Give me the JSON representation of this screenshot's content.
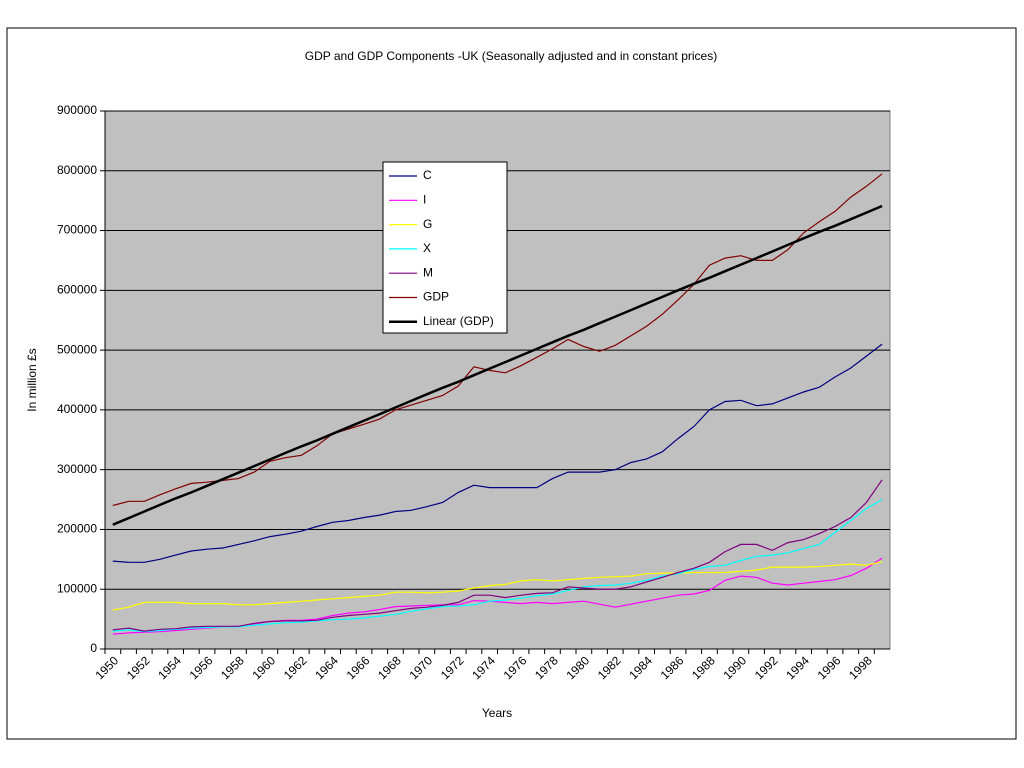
{
  "chart_data": {
    "type": "line",
    "title": "GDP and GDP Components -UK (Seasonally adjusted and in constant prices)",
    "x_label": "Years",
    "y_label": "In million £s",
    "categories": [
      "1950",
      null,
      "1952",
      null,
      "1954",
      null,
      "1956",
      null,
      "1958",
      null,
      "1960",
      null,
      "1962",
      null,
      "1964",
      null,
      "1966",
      null,
      "1968",
      null,
      "1970",
      null,
      "1972",
      null,
      "1974",
      null,
      "1976",
      null,
      "1978",
      null,
      "1980",
      null,
      "1982",
      null,
      "1984",
      null,
      "1986",
      null,
      "1988",
      null,
      "1990",
      null,
      "1992",
      null,
      "1994",
      null,
      "1996",
      null,
      "1998",
      null
    ],
    "ylim": [
      0,
      900000
    ],
    "yticks": [
      0,
      100000,
      200000,
      300000,
      400000,
      500000,
      600000,
      700000,
      800000,
      900000
    ],
    "grid": true,
    "legend": "upper-center",
    "series": [
      {
        "name": "C",
        "color": "#000080",
        "values": [
          147000,
          145000,
          145000,
          150000,
          157000,
          164000,
          167000,
          169000,
          175000,
          181000,
          188000,
          192000,
          197000,
          205000,
          212000,
          215000,
          220000,
          224000,
          230000,
          232000,
          238000,
          245000,
          262000,
          274000,
          270000,
          270000,
          270000,
          270000,
          285000,
          296000,
          296000,
          296000,
          300000,
          312000,
          318000,
          330000,
          352000,
          372000,
          400000,
          414000,
          416000,
          407000,
          410000,
          420000,
          430000,
          438000,
          455000,
          470000,
          490000,
          510000
        ]
      },
      {
        "name": "I",
        "color": "#ff00ff",
        "values": [
          25000,
          27000,
          28000,
          29000,
          31000,
          33000,
          35000,
          37000,
          38000,
          42000,
          46000,
          48000,
          48000,
          50000,
          56000,
          60000,
          62000,
          66000,
          71000,
          72000,
          73000,
          74000,
          74000,
          81000,
          80000,
          78000,
          76000,
          78000,
          76000,
          78000,
          80000,
          75000,
          70000,
          75000,
          80000,
          85000,
          90000,
          92000,
          98000,
          115000,
          122000,
          120000,
          110000,
          107000,
          110000,
          113000,
          116000,
          123000,
          135000,
          152000
        ]
      },
      {
        "name": "G",
        "color": "#ffff00",
        "values": [
          65000,
          70000,
          78000,
          78000,
          78000,
          76000,
          76000,
          76000,
          74000,
          74000,
          76000,
          78000,
          80000,
          82000,
          84000,
          86000,
          88000,
          90000,
          95000,
          95000,
          94000,
          95000,
          97000,
          102000,
          106000,
          108000,
          114000,
          116000,
          114000,
          116000,
          118000,
          120000,
          121000,
          122000,
          126000,
          127000,
          127000,
          128000,
          128000,
          128000,
          130000,
          132000,
          137000,
          137000,
          137000,
          138000,
          140000,
          142000,
          140000,
          146000
        ]
      },
      {
        "name": "X",
        "color": "#00ffff",
        "values": [
          30000,
          32000,
          29000,
          31000,
          33000,
          35000,
          36000,
          37000,
          37000,
          40000,
          42000,
          44000,
          45000,
          47000,
          49000,
          50000,
          52000,
          55000,
          58000,
          63000,
          67000,
          71000,
          72000,
          74000,
          80000,
          82000,
          85000,
          89000,
          92000,
          98000,
          104000,
          106000,
          107000,
          110000,
          115000,
          122000,
          126000,
          133000,
          138000,
          140000,
          148000,
          155000,
          157000,
          161000,
          168000,
          175000,
          195000,
          215000,
          235000,
          250000
        ]
      },
      {
        "name": "M",
        "color": "#800080",
        "values": [
          32000,
          35000,
          30000,
          33000,
          34000,
          37000,
          38000,
          38000,
          38000,
          43000,
          46000,
          47000,
          47000,
          48000,
          53000,
          56000,
          58000,
          60000,
          64000,
          68000,
          70000,
          73000,
          78000,
          90000,
          90000,
          86000,
          90000,
          93000,
          94000,
          104000,
          102000,
          100000,
          100000,
          104000,
          112000,
          120000,
          128000,
          135000,
          145000,
          163000,
          175000,
          175000,
          165000,
          178000,
          183000,
          193000,
          205000,
          220000,
          245000,
          283000
        ]
      },
      {
        "name": "GDP",
        "color": "#800000",
        "values": [
          240000,
          247000,
          247000,
          258000,
          268000,
          277000,
          279000,
          282000,
          285000,
          296000,
          314000,
          320000,
          324000,
          340000,
          360000,
          368000,
          376000,
          385000,
          400000,
          408000,
          416000,
          424000,
          440000,
          472000,
          466000,
          462000,
          474000,
          488000,
          502000,
          518000,
          506000,
          498000,
          508000,
          524000,
          540000,
          560000,
          584000,
          610000,
          642000,
          654000,
          658000,
          650000,
          650000,
          668000,
          696000,
          715000,
          732000,
          756000,
          774000,
          795000
        ]
      },
      {
        "name": "Linear (GDP)",
        "color": "#000000",
        "values": [
          208000,
          219000,
          230000,
          241000,
          252000,
          262000,
          273000,
          284000,
          295000,
          306000,
          317000,
          328000,
          339000,
          349000,
          360000,
          371000,
          382000,
          393000,
          404000,
          415000,
          426000,
          437000,
          447000,
          458000,
          469000,
          480000,
          491000,
          502000,
          513000,
          524000,
          534000,
          545000,
          556000,
          567000,
          578000,
          589000,
          600000,
          611000,
          621000,
          632000,
          643000,
          654000,
          665000,
          676000,
          687000,
          698000,
          708000,
          719000,
          730000,
          741000
        ]
      }
    ]
  }
}
